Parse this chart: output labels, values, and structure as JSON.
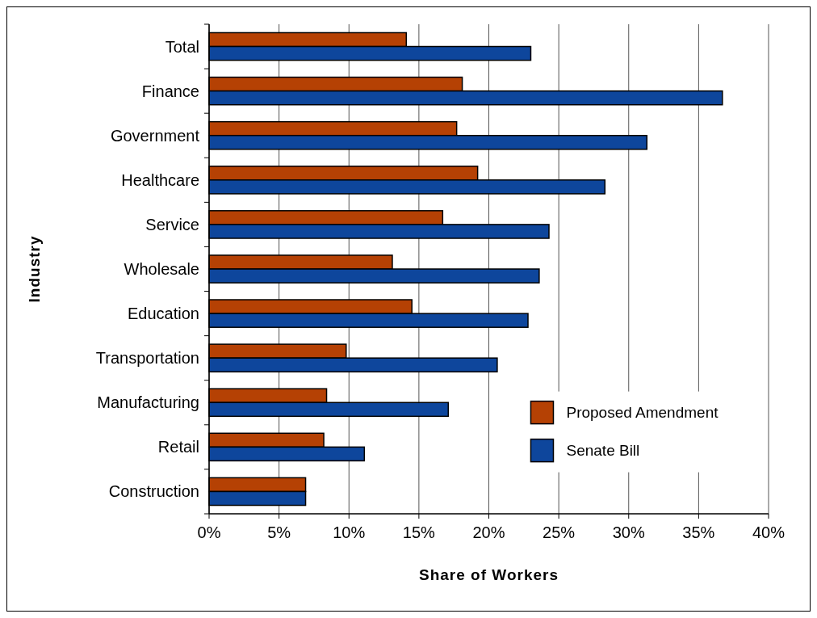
{
  "chart_data": {
    "type": "bar",
    "orientation": "horizontal",
    "xlabel": "Share of Workers",
    "ylabel": "Industry",
    "categories": [
      "Total",
      "Finance",
      "Government",
      "Healthcare",
      "Service",
      "Wholesale",
      "Education",
      "Transportation",
      "Manufacturing",
      "Retail",
      "Construction"
    ],
    "series": [
      {
        "name": "Proposed Amendment",
        "color": "#b54104",
        "values": [
          14.1,
          18.1,
          17.7,
          19.2,
          16.7,
          13.1,
          14.5,
          9.8,
          8.4,
          8.2,
          6.9
        ]
      },
      {
        "name": "Senate Bill",
        "color": "#0e469c",
        "values": [
          23.0,
          36.7,
          31.3,
          28.3,
          24.3,
          23.6,
          22.8,
          20.6,
          17.1,
          11.1,
          6.9
        ]
      }
    ],
    "xlim": [
      0,
      40
    ],
    "xticks": [
      {
        "value": 0,
        "label": "0%"
      },
      {
        "value": 5,
        "label": "5%"
      },
      {
        "value": 10,
        "label": "10%"
      },
      {
        "value": 15,
        "label": "15%"
      },
      {
        "value": 20,
        "label": "20%"
      },
      {
        "value": 25,
        "label": "25%"
      },
      {
        "value": 30,
        "label": "30%"
      },
      {
        "value": 35,
        "label": "35%"
      },
      {
        "value": 40,
        "label": "40%"
      }
    ],
    "grid": "x",
    "legend": "bottom right"
  }
}
